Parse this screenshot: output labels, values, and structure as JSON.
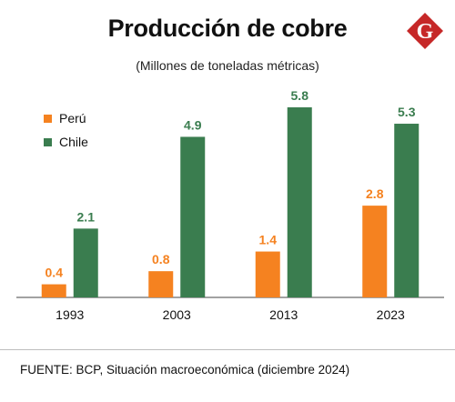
{
  "header": {
    "title": "Producción de cobre",
    "subtitle": "(Millones de toneladas métricas)"
  },
  "logo": {
    "icon": "g-diamond-logo",
    "letter": "G",
    "color": "#c62828"
  },
  "chart_data": {
    "type": "bar",
    "title": "Producción de cobre",
    "subtitle": "(Millones de toneladas métricas)",
    "xlabel": "",
    "ylabel": "",
    "categories": [
      "1993",
      "2003",
      "2013",
      "2023"
    ],
    "series": [
      {
        "name": "Perú",
        "color": "#f58220",
        "values": [
          0.4,
          0.8,
          1.4,
          2.8
        ]
      },
      {
        "name": "Chile",
        "color": "#3a7d4f",
        "values": [
          2.1,
          4.9,
          5.8,
          5.3
        ]
      }
    ],
    "data_labels": [
      [
        "0.4",
        "0.8",
        "1.4",
        "2.8"
      ],
      [
        "2.1",
        "4.9",
        "5.8",
        "5.3"
      ]
    ],
    "ylim": [
      0,
      6.3
    ],
    "grid": false,
    "legend": "top-left"
  },
  "footer": {
    "source": "FUENTE: BCP, Situación macroeconómica (diciembre 2024)"
  }
}
